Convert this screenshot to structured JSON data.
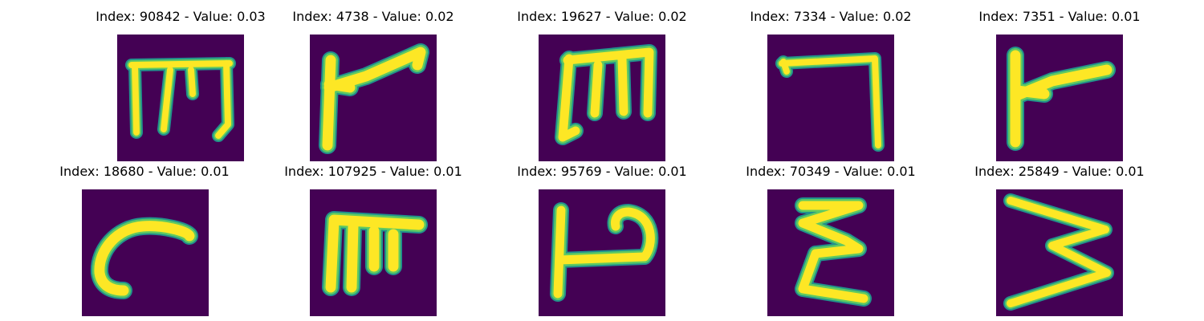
{
  "colors": {
    "background": "#440154",
    "teal": "#21918c",
    "green": "#5ec962",
    "yellow": "#fde725"
  },
  "panels": [
    {
      "title": "Index: 90842 - Value: 0.03",
      "glyph": "m-shape"
    },
    {
      "title": "Index: 4738 - Value: 0.02",
      "glyph": "r-shape"
    },
    {
      "title": "Index: 19627 - Value: 0.02",
      "glyph": "m-shape"
    },
    {
      "title": "Index: 7334 - Value: 0.02",
      "glyph": "seven-shape"
    },
    {
      "title": "Index: 7351 - Value: 0.01",
      "glyph": "r-shape"
    },
    {
      "title": "Index: 18680 - Value: 0.01",
      "glyph": "c-shape"
    },
    {
      "title": "Index: 107925 - Value: 0.01",
      "glyph": "m-shape"
    },
    {
      "title": "Index: 95769 - Value: 0.01",
      "glyph": "p-shape"
    },
    {
      "title": "Index: 70349 - Value: 0.01",
      "glyph": "sigma-shape"
    },
    {
      "title": "Index: 25849 - Value: 0.01",
      "glyph": "zigzag-shape"
    }
  ]
}
